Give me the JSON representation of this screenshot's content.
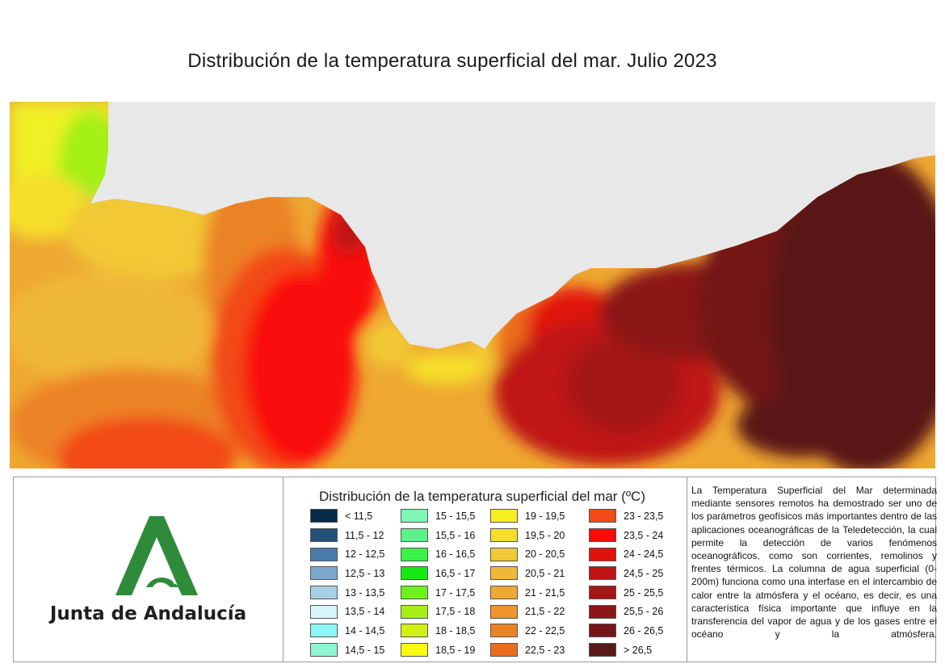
{
  "title": "Distribución de la temperatura superficial del mar. Julio 2023",
  "logo": {
    "text": "Junta de Andalucía",
    "icon": "junta-andalucia-logo-icon"
  },
  "legend": {
    "title": "Distribución de la temperatura superficial del mar (ºC)",
    "columns": [
      [
        {
          "label": "< 11,5",
          "color": "#062a4a"
        },
        {
          "label": "11,5 - 12",
          "color": "#24507a"
        },
        {
          "label": "12 - 12,5",
          "color": "#4a7aa8"
        },
        {
          "label": "12,5 - 13",
          "color": "#7aa6d0"
        },
        {
          "label": "13 - 13,5",
          "color": "#a6d0e6"
        },
        {
          "label": "13,5 - 14",
          "color": "#d6f6fa"
        },
        {
          "label": "14 - 14,5",
          "color": "#8ef6f6"
        },
        {
          "label": "14,5 - 15",
          "color": "#8ef6d2"
        }
      ],
      [
        {
          "label": "15 - 15,5",
          "color": "#7ef6b6"
        },
        {
          "label": "15,5 - 16",
          "color": "#5ef08a"
        },
        {
          "label": "16 - 16,5",
          "color": "#3af24a"
        },
        {
          "label": "16,5 - 17",
          "color": "#16e812"
        },
        {
          "label": "17 - 17,5",
          "color": "#6ef21a"
        },
        {
          "label": "17,5 - 18",
          "color": "#a4f014"
        },
        {
          "label": "18 - 18,5",
          "color": "#d2f014"
        },
        {
          "label": "18,5 - 19",
          "color": "#fafa0e"
        }
      ],
      [
        {
          "label": "19 - 19,5",
          "color": "#f8ee22"
        },
        {
          "label": "19,5 - 20",
          "color": "#f6de2c"
        },
        {
          "label": "20 - 20,5",
          "color": "#f2c834"
        },
        {
          "label": "20,5 - 21",
          "color": "#f0b838"
        },
        {
          "label": "21 - 21,5",
          "color": "#eea832"
        },
        {
          "label": "21,5 - 22",
          "color": "#ee962c"
        },
        {
          "label": "22 - 22,5",
          "color": "#ec8226"
        },
        {
          "label": "22,5 - 23",
          "color": "#ec6a1e"
        }
      ],
      [
        {
          "label": "23 - 23,5",
          "color": "#f24a16"
        },
        {
          "label": "23,5 - 24",
          "color": "#fa0a08"
        },
        {
          "label": "24 - 24,5",
          "color": "#e0120e"
        },
        {
          "label": "24,5 - 25",
          "color": "#c01414"
        },
        {
          "label": "25 - 25,5",
          "color": "#a51616"
        },
        {
          "label": "25,5 - 26",
          "color": "#8c1616"
        },
        {
          "label": "26 - 26,5",
          "color": "#741616"
        },
        {
          "label": "> 26,5",
          "color": "#5a1818"
        }
      ]
    ]
  },
  "description": "La Temperatura Superficial del Mar determinada mediante sensores remotos ha demostrado ser uno de los parámetros geofísicos más importantes dentro de las aplicaciones oceanográficas de la Teledetección, la cual permite la detección de varios fenómenos oceanográficos, como son corrientes, remolinos y frentes térmicos. La columna de agua superficial (0-200m) funciona como una interfase en el intercambio de calor entre la atmósfera y el océano, es decir, es una característica física importante que influye en la transferencia del vapor de agua y de los gases entre el océano y la atmósfera."
}
